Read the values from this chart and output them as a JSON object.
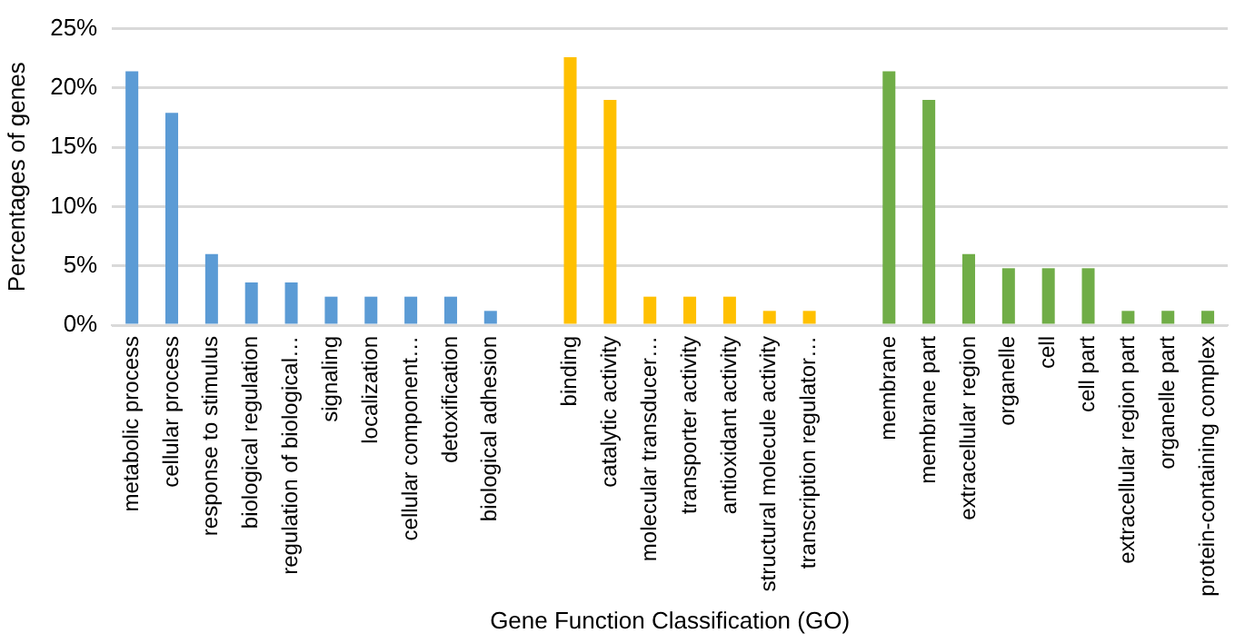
{
  "chart_data": {
    "type": "bar",
    "xlabel": "Gene Function Classification (GO)",
    "ylabel": "Percentages of genes",
    "categories": [
      "metabolic process",
      "cellular process",
      "response to stimulus",
      "biological regulation",
      "regulation of biological…",
      "signaling",
      "localization",
      "cellular component…",
      "detoxification",
      "biological adhesion",
      null,
      "binding",
      "catalytic activity",
      "molecular transducer…",
      "transporter activity",
      "antioxidant activity",
      "structural molecule activity",
      "transcription regulator…",
      null,
      "membrane",
      "membrane part",
      "extracellular region",
      "organelle",
      "cell",
      "cell part",
      "extracellular region part",
      "organelle part",
      "protein-containing complex"
    ],
    "values": [
      21.4,
      17.9,
      6.0,
      3.6,
      3.6,
      2.4,
      2.4,
      2.4,
      2.4,
      1.2,
      null,
      22.6,
      19.0,
      2.4,
      2.4,
      2.4,
      1.2,
      1.2,
      null,
      21.4,
      19.0,
      6.0,
      4.8,
      4.8,
      4.8,
      1.2,
      1.2,
      1.2
    ],
    "colors": [
      "#5b9bd5",
      "#5b9bd5",
      "#5b9bd5",
      "#5b9bd5",
      "#5b9bd5",
      "#5b9bd5",
      "#5b9bd5",
      "#5b9bd5",
      "#5b9bd5",
      "#5b9bd5",
      "#ffffff",
      "#ffc000",
      "#ffc000",
      "#ffc000",
      "#ffc000",
      "#ffc000",
      "#ffc000",
      "#ffc000",
      "#ffffff",
      "#70ad47",
      "#70ad47",
      "#70ad47",
      "#70ad47",
      "#70ad47",
      "#70ad47",
      "#70ad47",
      "#70ad47",
      "#70ad47"
    ],
    "ylim": [
      0,
      25
    ],
    "yticks": [
      {
        "value": 0,
        "label": "0%"
      },
      {
        "value": 5,
        "label": "5%"
      },
      {
        "value": 10,
        "label": "10%"
      },
      {
        "value": 15,
        "label": "15%"
      },
      {
        "value": 20,
        "label": "20%"
      },
      {
        "value": 25,
        "label": "25%"
      }
    ],
    "grid": "y",
    "legend": false
  }
}
